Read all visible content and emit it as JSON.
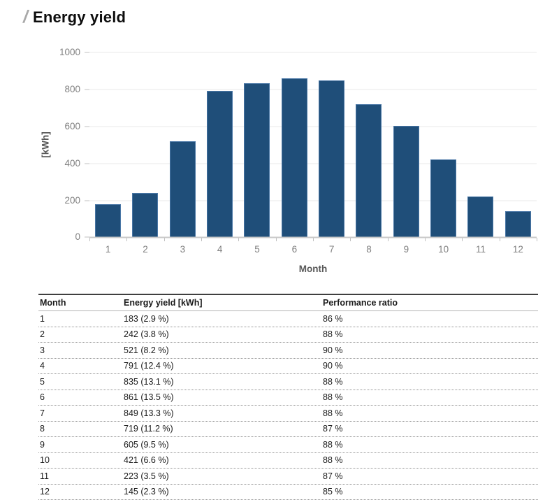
{
  "page": {
    "title": "Energy yield",
    "title_slash": "/"
  },
  "chart_data": {
    "type": "bar",
    "title": "Energy yield",
    "categories": [
      "1",
      "2",
      "3",
      "4",
      "5",
      "6",
      "7",
      "8",
      "9",
      "10",
      "11",
      "12"
    ],
    "values": [
      183,
      242,
      521,
      791,
      835,
      861,
      849,
      719,
      605,
      421,
      223,
      145
    ],
    "xlabel": "Month",
    "ylabel": "[kWh]",
    "ylim": [
      0,
      1000
    ],
    "yticks": [
      0,
      200,
      400,
      600,
      800,
      1000
    ],
    "grid": true,
    "legend_position": "none",
    "bar_color": "#1f4e79",
    "bar_border_color": "#4a77a6",
    "gridline_color": "#e8e8e8",
    "axis_text_color": "#808080"
  },
  "table": {
    "headers": [
      "Month",
      "Energy yield [kWh]",
      "Performance ratio"
    ],
    "rows": [
      [
        "1",
        "183 (2.9 %)",
        "86 %"
      ],
      [
        "2",
        "242 (3.8 %)",
        "88 %"
      ],
      [
        "3",
        "521 (8.2 %)",
        "90 %"
      ],
      [
        "4",
        "791 (12.4 %)",
        "90 %"
      ],
      [
        "5",
        "835 (13.1 %)",
        "88 %"
      ],
      [
        "6",
        "861 (13.5 %)",
        "88 %"
      ],
      [
        "7",
        "849 (13.3 %)",
        "88 %"
      ],
      [
        "8",
        "719 (11.2 %)",
        "87 %"
      ],
      [
        "9",
        "605 (9.5 %)",
        "88 %"
      ],
      [
        "10",
        "421 (6.6 %)",
        "88 %"
      ],
      [
        "11",
        "223 (3.5 %)",
        "87 %"
      ],
      [
        "12",
        "145 (2.3 %)",
        "85 %"
      ]
    ]
  }
}
